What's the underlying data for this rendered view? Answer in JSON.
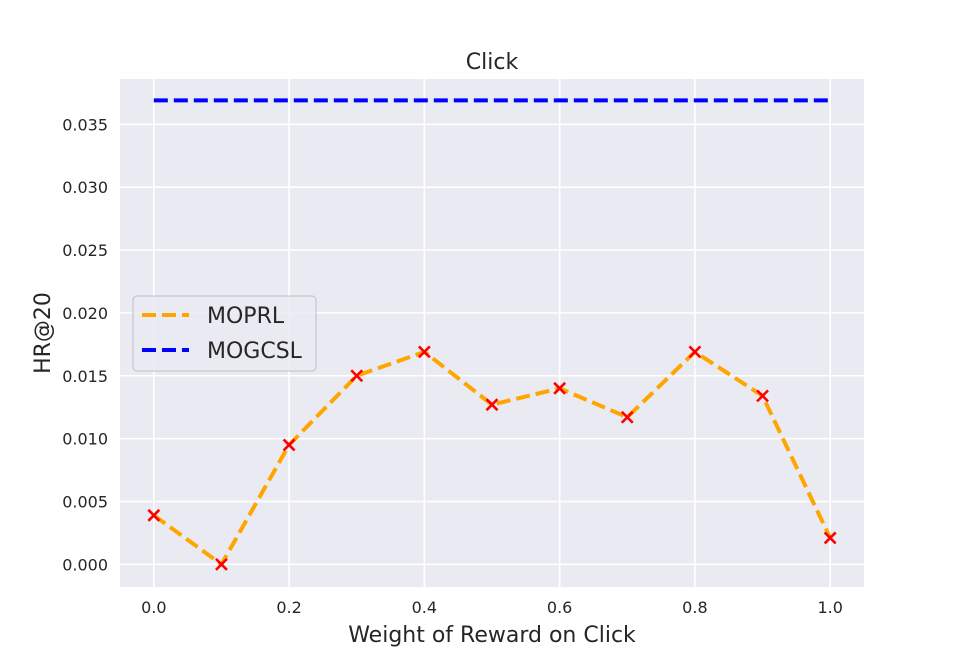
{
  "chart_data": {
    "type": "line",
    "title": "Click",
    "xlabel": "Weight of Reward on Click",
    "ylabel": "HR@20",
    "x": [
      0.0,
      0.1,
      0.2,
      0.3,
      0.4,
      0.5,
      0.6,
      0.7,
      0.8,
      0.9,
      1.0
    ],
    "xticks": [
      0.0,
      0.2,
      0.4,
      0.6,
      0.8,
      1.0
    ],
    "xtick_labels": [
      "0.0",
      "0.2",
      "0.4",
      "0.6",
      "0.8",
      "1.0"
    ],
    "yticks": [
      0.0,
      0.005,
      0.01,
      0.015,
      0.02,
      0.025,
      0.03,
      0.035
    ],
    "ytick_labels": [
      "0.000",
      "0.005",
      "0.010",
      "0.015",
      "0.020",
      "0.025",
      "0.030",
      "0.035"
    ],
    "xlim": [
      -0.05,
      1.05
    ],
    "ylim": [
      -0.0018,
      0.0386
    ],
    "grid": true,
    "legend_position": "center-left",
    "series": [
      {
        "name": "MOPRL",
        "color": "#FFA500",
        "marker_color": "#FF0000",
        "marker": "x",
        "line_style": "dashed",
        "values": [
          0.0039,
          0.0,
          0.0095,
          0.015,
          0.0169,
          0.0127,
          0.014,
          0.0117,
          0.0169,
          0.0134,
          0.0021
        ]
      },
      {
        "name": "MOGCSL",
        "color": "#0000FF",
        "line_style": "dashed",
        "values": [
          0.0369,
          0.0369,
          0.0369,
          0.0369,
          0.0369,
          0.0369,
          0.0369,
          0.0369,
          0.0369,
          0.0369,
          0.0369
        ]
      }
    ]
  }
}
